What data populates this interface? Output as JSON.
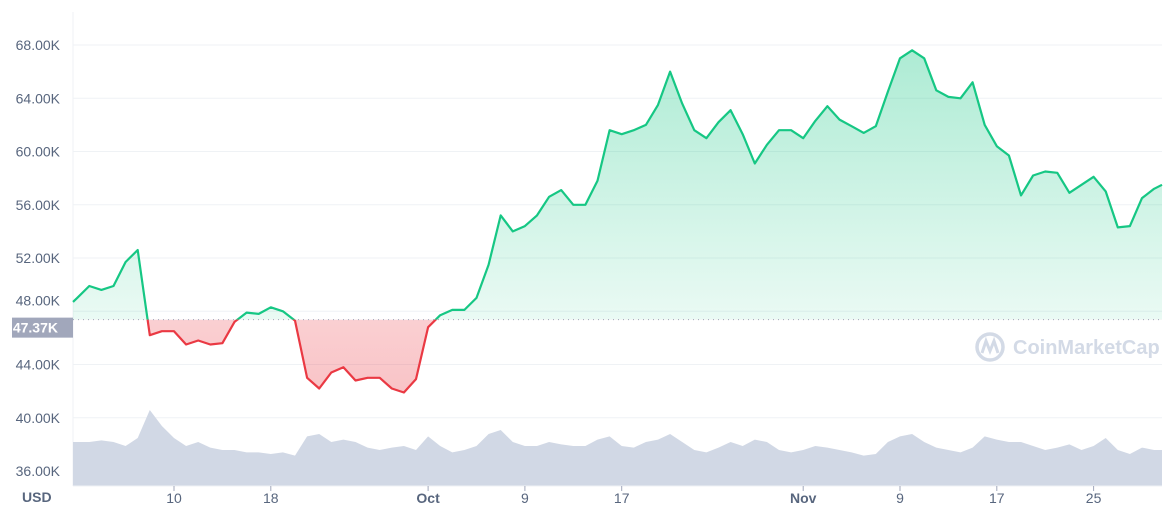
{
  "chart_data": {
    "type": "area",
    "title": "",
    "xlabel": "",
    "ylabel": "",
    "currency_label": "USD",
    "baseline": 47.37,
    "baseline_label": "47.37K",
    "ylim": [
      36,
      69
    ],
    "y_ticks": [
      "36.00K",
      "40.00K",
      "44.00K",
      "48.00K",
      "52.00K",
      "56.00K",
      "60.00K",
      "64.00K",
      "68.00K"
    ],
    "y_tick_values": [
      36,
      40,
      44,
      48,
      52,
      56,
      60,
      64,
      68
    ],
    "x_ticks": [
      {
        "label": "10",
        "date": "2021-09-10",
        "bold": false
      },
      {
        "label": "18",
        "date": "2021-09-18",
        "bold": false
      },
      {
        "label": "Oct",
        "date": "2021-10-01",
        "bold": true
      },
      {
        "label": "9",
        "date": "2021-10-09",
        "bold": false
      },
      {
        "label": "17",
        "date": "2021-10-17",
        "bold": false
      },
      {
        "label": "Nov",
        "date": "2021-11-01",
        "bold": true
      },
      {
        "label": "9",
        "date": "2021-11-09",
        "bold": false
      },
      {
        "label": "17",
        "date": "2021-11-17",
        "bold": false
      },
      {
        "label": "25",
        "date": "2021-11-25",
        "bold": false
      }
    ],
    "x_start": "2021-09-01",
    "x_end": "2021-11-30",
    "grid": true,
    "colors": {
      "above": "#16c784",
      "below": "#ea3943",
      "volume": "#cfd6e4",
      "grid": "#eff2f5",
      "baseline_box": "#a1a7bb"
    },
    "series": [
      {
        "start_date": "2021-09-02",
        "interval": "1 day",
        "values": [
          49.0,
          49.9,
          49.6,
          49.9,
          51.7,
          52.6,
          46.2,
          46.5,
          46.5,
          45.5,
          45.8,
          45.5,
          45.6,
          47.2,
          47.9,
          47.8,
          48.3,
          48.0,
          47.3,
          43.0,
          42.2,
          43.4,
          43.8,
          42.8,
          43.0,
          43.0,
          42.2,
          41.9,
          42.9,
          46.8,
          47.7,
          48.1,
          48.1,
          49.0,
          51.5,
          55.2,
          54.0,
          54.4,
          55.2,
          56.6,
          57.1,
          56.0,
          56.0,
          57.8,
          61.6,
          61.3,
          61.6,
          62.0,
          63.5,
          66.0,
          63.6,
          61.6,
          61.0,
          62.2,
          63.1,
          61.3,
          59.1,
          60.5,
          61.6,
          61.6,
          61.0,
          62.3,
          63.4,
          62.4,
          61.9,
          61.4,
          61.9,
          64.5,
          67.0,
          67.6,
          67.0,
          64.6,
          64.1,
          64.0,
          65.2,
          62.0,
          60.4,
          59.7,
          56.7,
          58.2,
          58.5,
          58.4,
          56.9,
          57.5,
          58.1,
          57.0,
          54.3,
          54.4,
          56.5,
          57.2
        ]
      }
    ],
    "volume_relative": [
      0.55,
      0.55,
      0.57,
      0.55,
      0.5,
      0.6,
      0.95,
      0.75,
      0.6,
      0.5,
      0.55,
      0.48,
      0.45,
      0.45,
      0.42,
      0.42,
      0.4,
      0.42,
      0.38,
      0.62,
      0.65,
      0.55,
      0.58,
      0.55,
      0.48,
      0.45,
      0.48,
      0.5,
      0.45,
      0.62,
      0.5,
      0.42,
      0.45,
      0.5,
      0.65,
      0.7,
      0.55,
      0.5,
      0.5,
      0.55,
      0.52,
      0.5,
      0.5,
      0.58,
      0.62,
      0.5,
      0.48,
      0.55,
      0.58,
      0.65,
      0.55,
      0.45,
      0.42,
      0.48,
      0.55,
      0.5,
      0.58,
      0.55,
      0.45,
      0.42,
      0.45,
      0.5,
      0.48,
      0.45,
      0.42,
      0.38,
      0.4,
      0.55,
      0.62,
      0.65,
      0.55,
      0.48,
      0.45,
      0.42,
      0.48,
      0.62,
      0.58,
      0.55,
      0.55,
      0.5,
      0.45,
      0.48,
      0.52,
      0.45,
      0.5,
      0.6,
      0.45,
      0.4,
      0.48,
      0.45
    ]
  },
  "watermark": "CoinMarketCap"
}
